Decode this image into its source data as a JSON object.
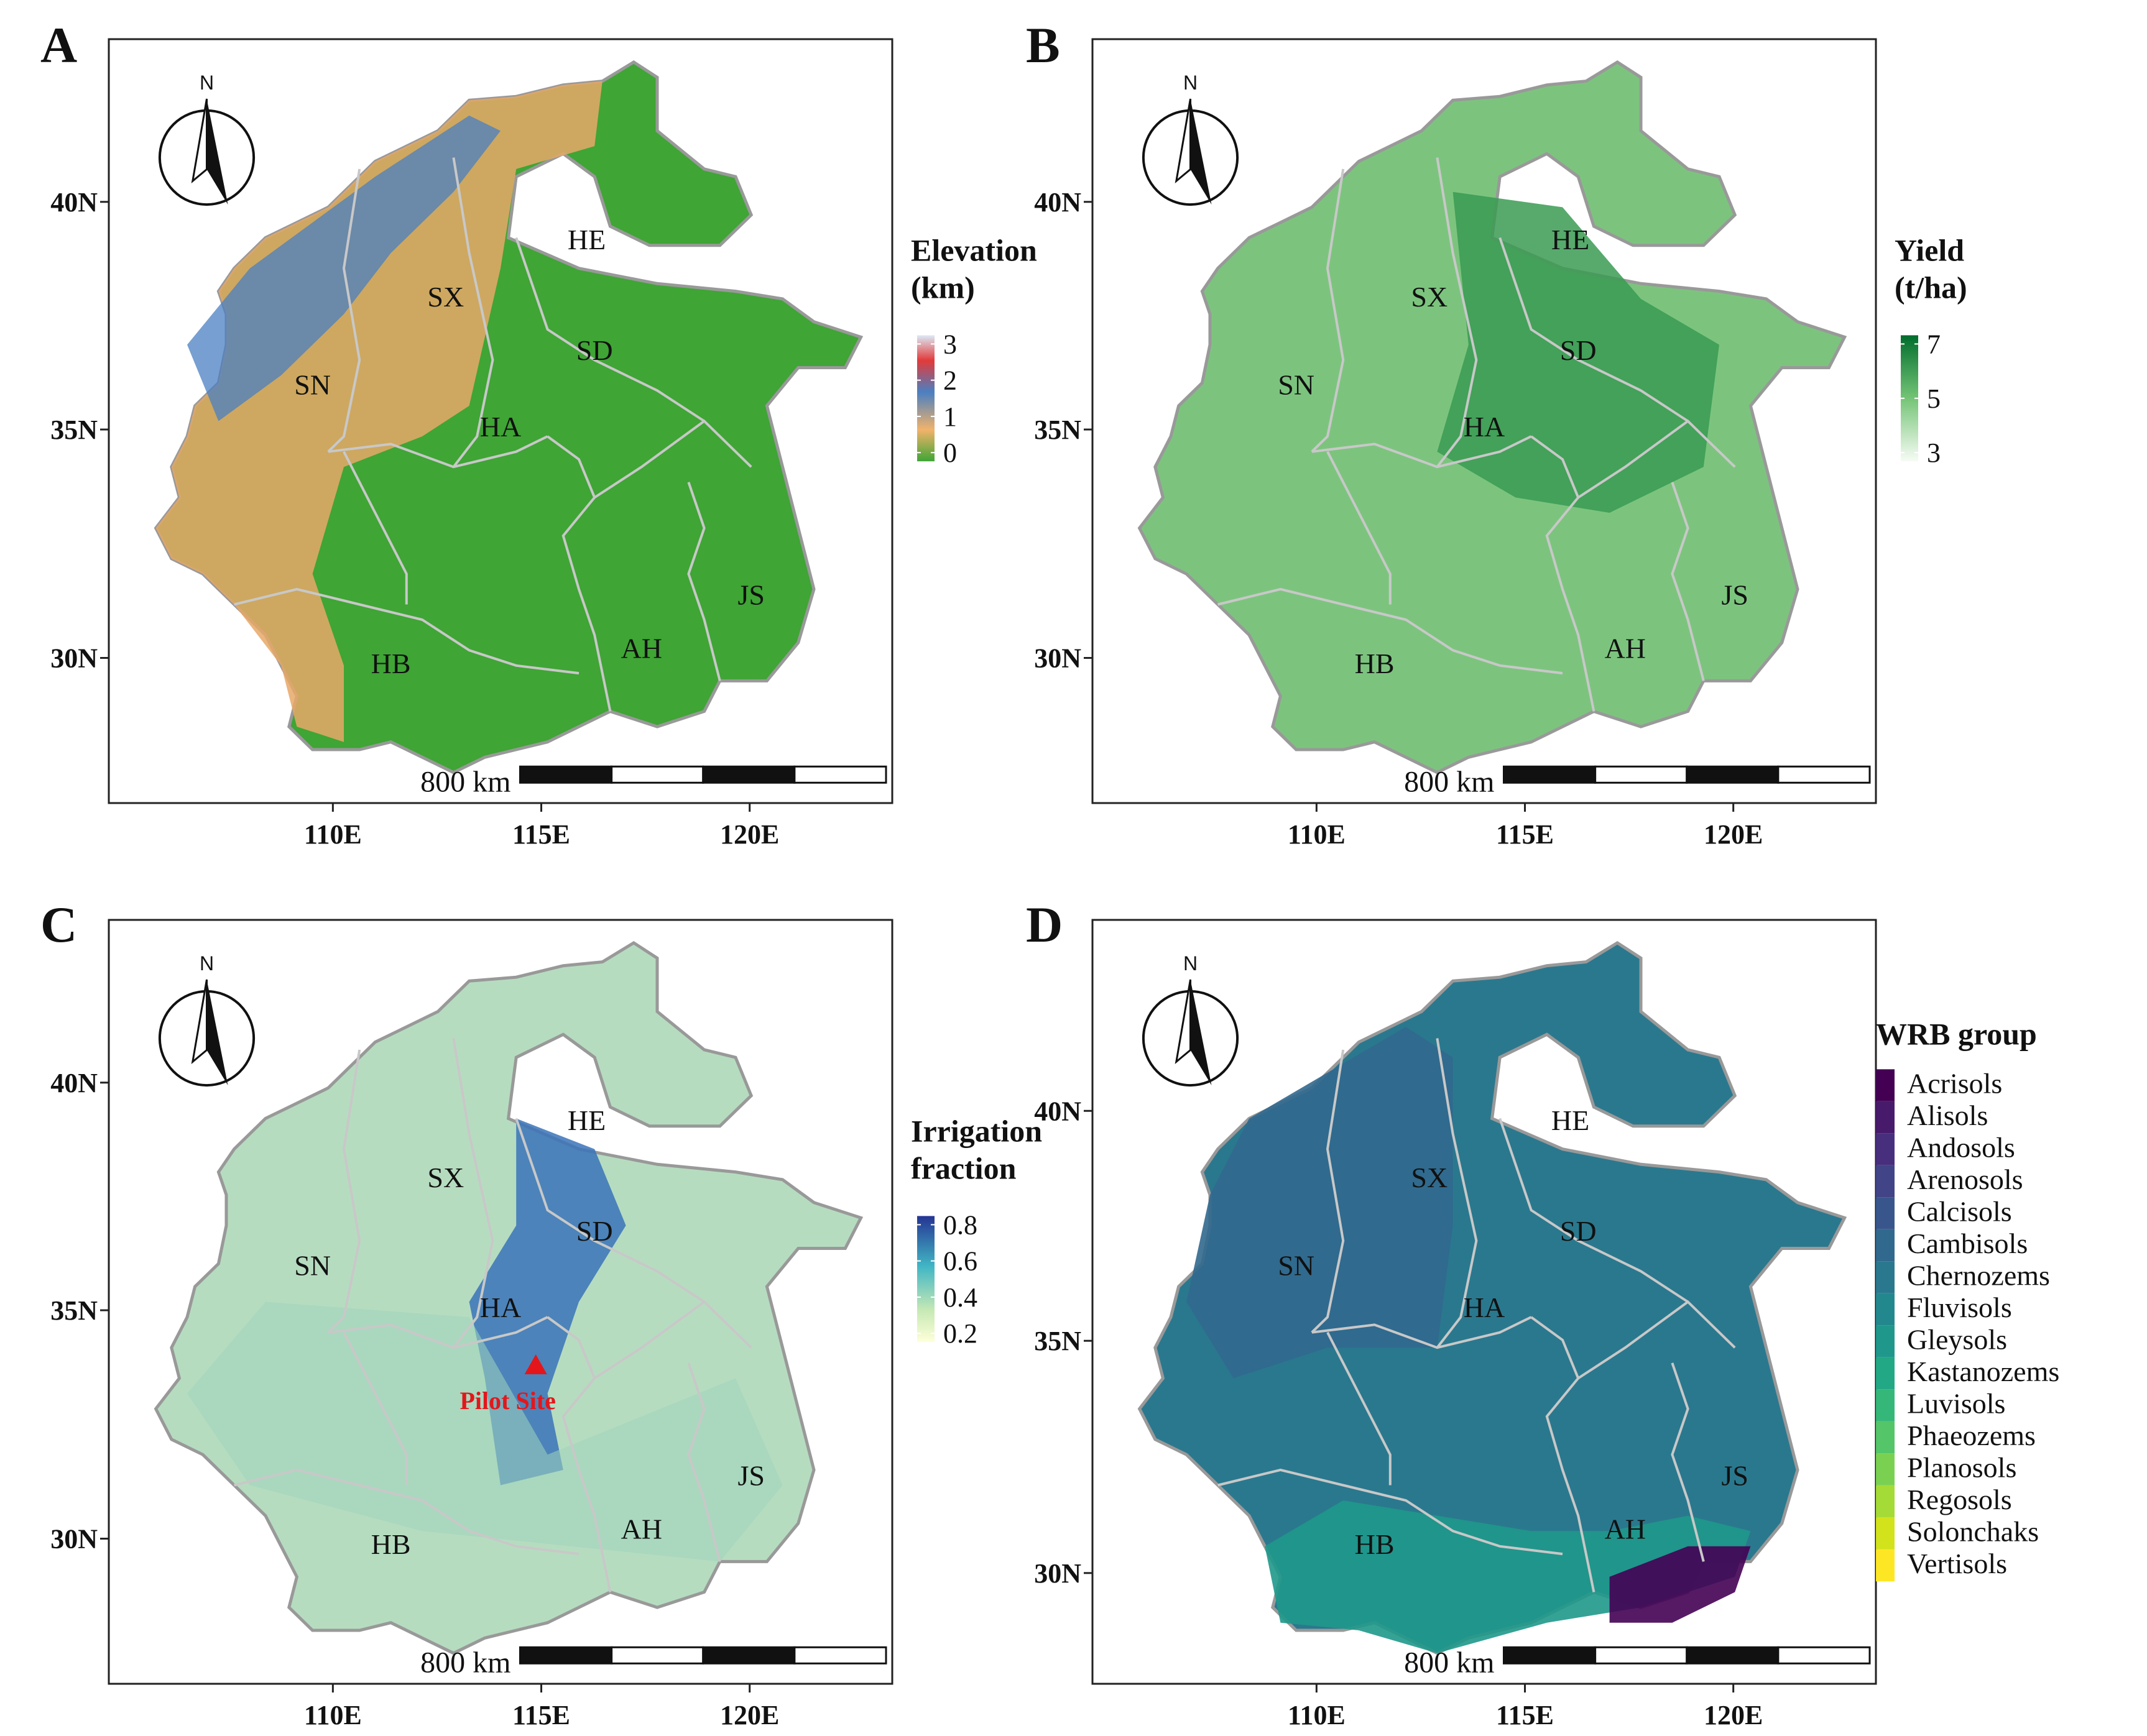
{
  "panels": [
    {
      "letter": "A",
      "legend_title": [
        "Elevation",
        "(km)"
      ],
      "legend_ticks": [
        "3",
        "2",
        "1",
        "0"
      ],
      "colors": [
        "#dbe9f6",
        "#e23a3a",
        "#4a7fc1",
        "#f2b36b",
        "#3fa535"
      ]
    },
    {
      "letter": "B",
      "legend_title": [
        "Yield",
        "(t/ha)"
      ],
      "legend_ticks": [
        "7",
        "5",
        "3"
      ],
      "colors": [
        "#006d2c",
        "#74c476",
        "#f7fcf5"
      ]
    },
    {
      "letter": "C",
      "legend_title": [
        "Irrigation",
        "fraction"
      ],
      "legend_ticks": [
        "0.8",
        "0.6",
        "0.4",
        "0.2"
      ],
      "colors": [
        "#253494",
        "#41b6c4",
        "#c7e9b4",
        "#ffffd9"
      ]
    },
    {
      "letter": "D",
      "legend_title": [
        "WRB group"
      ]
    }
  ],
  "axes": {
    "lon_ticks": [
      "110E",
      "115E",
      "120E"
    ],
    "lat_ticks": [
      "40N",
      "35N",
      "30N"
    ]
  },
  "provinces": [
    "HE",
    "SX",
    "SD",
    "SN",
    "HA",
    "JS",
    "HB",
    "AH"
  ],
  "north_label": "N",
  "scale_label": "800 km",
  "pilot_site": "Pilot Site",
  "wrb_groups": [
    {
      "name": "Acrisols",
      "color": "#440154"
    },
    {
      "name": "Alisols",
      "color": "#481a6c"
    },
    {
      "name": "Andosols",
      "color": "#472f7d"
    },
    {
      "name": "Arenosols",
      "color": "#414487"
    },
    {
      "name": "Calcisols",
      "color": "#39568c"
    },
    {
      "name": "Cambisols",
      "color": "#31688e"
    },
    {
      "name": "Chernozems",
      "color": "#2a788e"
    },
    {
      "name": "Fluvisols",
      "color": "#23888e"
    },
    {
      "name": "Gleysols",
      "color": "#1f988b"
    },
    {
      "name": "Kastanozems",
      "color": "#22a884"
    },
    {
      "name": "Luvisols",
      "color": "#35b779"
    },
    {
      "name": "Phaeozems",
      "color": "#54c568"
    },
    {
      "name": "Planosols",
      "color": "#7ad151"
    },
    {
      "name": "Regosols",
      "color": "#a5db36"
    },
    {
      "name": "Solonchaks",
      "color": "#d2e21b"
    },
    {
      "name": "Vertisols",
      "color": "#fde725"
    }
  ]
}
